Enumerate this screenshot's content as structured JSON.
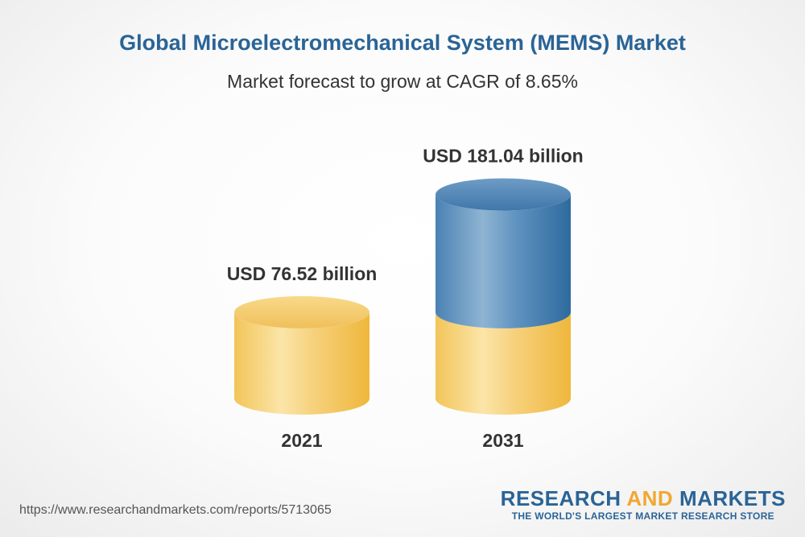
{
  "title": "Global Microelectromechanical System (MEMS) Market",
  "subtitle": "Market forecast to grow at CAGR of 8.65%",
  "chart_data": {
    "type": "bar",
    "style": "3d-cylinder",
    "categories": [
      "2021",
      "2031"
    ],
    "values": [
      76.52,
      181.04
    ],
    "value_labels": [
      "USD 76.52 billion",
      "USD 181.04 billion"
    ],
    "unit": "USD billion",
    "title": "Global Microelectromechanical System (MEMS) Market",
    "subtitle": "Market forecast to grow at CAGR of 8.65%",
    "colors": {
      "base": "#f2c75c",
      "growth": "#4a82b4"
    }
  },
  "footer": {
    "source_url": "https://www.researchandmarkets.com/reports/5713065",
    "brand_word1": "RESEARCH",
    "brand_word2": "AND",
    "brand_word3": "MARKETS",
    "brand_tagline": "THE WORLD'S LARGEST MARKET RESEARCH STORE"
  }
}
